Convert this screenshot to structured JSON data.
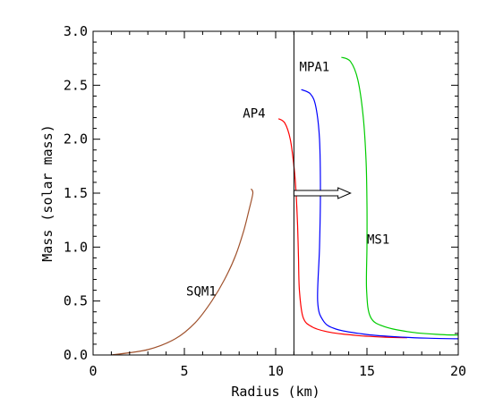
{
  "chart_data": {
    "type": "line",
    "title": "",
    "xlabel": "Radius (km)",
    "ylabel": "Mass (solar mass)",
    "xlim": [
      0,
      20
    ],
    "ylim": [
      0,
      3.0
    ],
    "xticks": [
      "0",
      "5",
      "10",
      "15",
      "20"
    ],
    "yticks": [
      "0.0",
      "0.5",
      "1.0",
      "1.5",
      "2.0",
      "2.5",
      "3.0"
    ],
    "grid": false,
    "legend": "none",
    "vertical_line": {
      "x": 11.0,
      "color": "#000000"
    },
    "arrow": {
      "x_start": 11.0,
      "x_end": 14.1,
      "y": 1.5
    },
    "series": [
      {
        "name": "SQM1",
        "color": "#a0522d",
        "label_at": [
          5.1,
          0.55
        ],
        "points": [
          [
            1.0,
            0.0
          ],
          [
            3.0,
            0.05
          ],
          [
            4.5,
            0.15
          ],
          [
            5.6,
            0.3
          ],
          [
            6.5,
            0.5
          ],
          [
            7.2,
            0.7
          ],
          [
            7.8,
            0.92
          ],
          [
            8.25,
            1.15
          ],
          [
            8.55,
            1.35
          ],
          [
            8.75,
            1.5
          ],
          [
            8.65,
            1.54
          ]
        ]
      },
      {
        "name": "AP4",
        "color": "#ff0000",
        "label_at": [
          8.2,
          2.2
        ],
        "points": [
          [
            10.15,
            2.19
          ],
          [
            10.5,
            2.15
          ],
          [
            10.8,
            2.0
          ],
          [
            11.0,
            1.75
          ],
          [
            11.12,
            1.5
          ],
          [
            11.2,
            1.2
          ],
          [
            11.25,
            0.9
          ],
          [
            11.3,
            0.6
          ],
          [
            11.5,
            0.35
          ],
          [
            12.0,
            0.26
          ],
          [
            13.0,
            0.21
          ],
          [
            14.5,
            0.18
          ],
          [
            16.0,
            0.165
          ],
          [
            17.2,
            0.16
          ]
        ]
      },
      {
        "name": "MPA1",
        "color": "#0000ff",
        "label_at": [
          11.3,
          2.63
        ],
        "points": [
          [
            11.4,
            2.46
          ],
          [
            11.9,
            2.42
          ],
          [
            12.2,
            2.3
          ],
          [
            12.4,
            2.0
          ],
          [
            12.45,
            1.5
          ],
          [
            12.4,
            1.0
          ],
          [
            12.3,
            0.5
          ],
          [
            12.6,
            0.32
          ],
          [
            13.3,
            0.24
          ],
          [
            15.0,
            0.19
          ],
          [
            17.0,
            0.165
          ],
          [
            18.5,
            0.155
          ],
          [
            20.0,
            0.15
          ]
        ]
      },
      {
        "name": "MS1",
        "color": "#00cc00",
        "label_at": [
          15.0,
          1.03
        ],
        "points": [
          [
            13.6,
            2.76
          ],
          [
            14.1,
            2.72
          ],
          [
            14.5,
            2.55
          ],
          [
            14.8,
            2.2
          ],
          [
            14.95,
            1.8
          ],
          [
            15.0,
            1.4
          ],
          [
            15.0,
            1.0
          ],
          [
            14.98,
            0.6
          ],
          [
            15.2,
            0.35
          ],
          [
            16.0,
            0.26
          ],
          [
            17.5,
            0.21
          ],
          [
            19.0,
            0.19
          ],
          [
            20.0,
            0.185
          ]
        ]
      }
    ]
  }
}
